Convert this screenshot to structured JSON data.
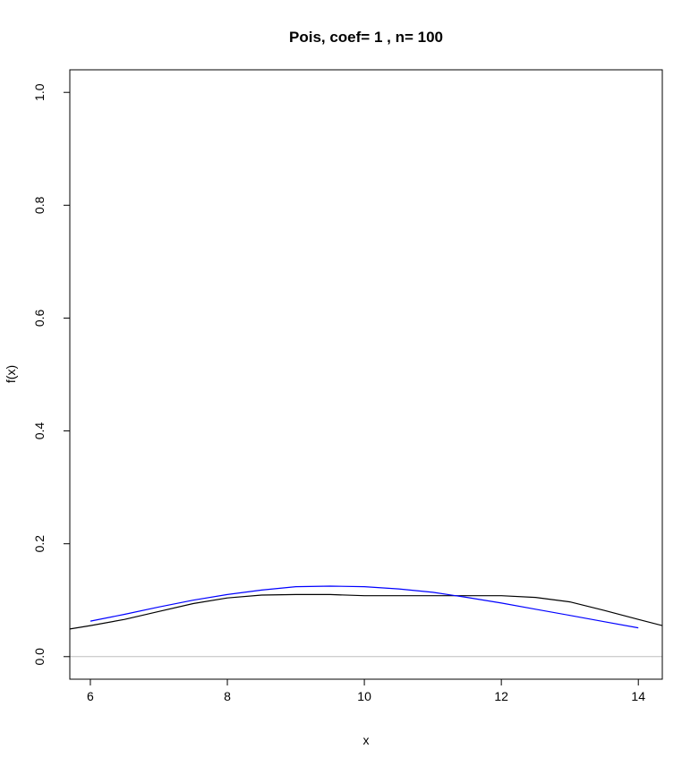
{
  "chart_data": {
    "type": "line",
    "title": "Pois, coef= 1 , n= 100",
    "xlabel": "x",
    "ylabel": "f(x)",
    "xlim": [
      5.7,
      14.35
    ],
    "ylim": [
      -0.04,
      1.04
    ],
    "xticks": [
      6,
      8,
      10,
      12,
      14
    ],
    "yticks": [
      0.0,
      0.2,
      0.4,
      0.6,
      0.8,
      1.0
    ],
    "ytick_labels": [
      "0.0",
      "0.2",
      "0.4",
      "0.6",
      "0.8",
      "1.0"
    ],
    "grid": false,
    "reference_line": {
      "y": 0,
      "color": "#bebebe"
    },
    "series": [
      {
        "color": "#000000",
        "x": [
          5.7,
          6.0,
          6.5,
          7.0,
          7.5,
          8.0,
          8.5,
          9.0,
          9.5,
          10.0,
          10.5,
          11.0,
          11.5,
          12.0,
          12.5,
          13.0,
          13.5,
          14.0,
          14.35
        ],
        "y": [
          0.049,
          0.055,
          0.066,
          0.08,
          0.094,
          0.104,
          0.109,
          0.11,
          0.11,
          0.108,
          0.108,
          0.108,
          0.108,
          0.108,
          0.105,
          0.097,
          0.082,
          0.066,
          0.055
        ]
      },
      {
        "color": "#0000ff",
        "x": [
          6.0,
          6.5,
          7.0,
          7.5,
          8.0,
          8.5,
          9.0,
          9.5,
          10.0,
          10.5,
          11.0,
          11.5,
          12.0,
          12.5,
          13.0,
          13.5,
          14.0
        ],
        "y": [
          0.063,
          0.075,
          0.088,
          0.1,
          0.11,
          0.118,
          0.124,
          0.125,
          0.124,
          0.12,
          0.114,
          0.105,
          0.095,
          0.084,
          0.073,
          0.062,
          0.051
        ]
      }
    ]
  }
}
